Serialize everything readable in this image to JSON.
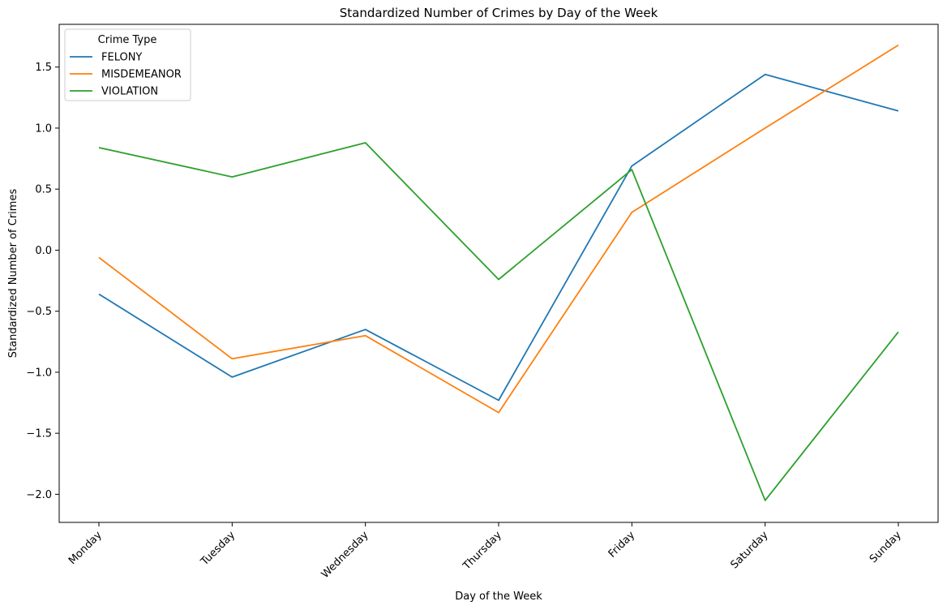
{
  "chart_data": {
    "type": "line",
    "title": "Standardized Number of Crimes by Day of the Week",
    "xlabel": "Day of the Week",
    "ylabel": "Standardized Number of Crimes",
    "categories": [
      "Monday",
      "Tuesday",
      "Wednesday",
      "Thursday",
      "Friday",
      "Saturday",
      "Sunday"
    ],
    "ylim": [
      -2.23,
      1.85
    ],
    "yticks": [
      -2.0,
      -1.5,
      -1.0,
      -0.5,
      0.0,
      0.5,
      1.0,
      1.5
    ],
    "ytick_labels": [
      "−2.0",
      "−1.5",
      "−1.0",
      "−0.5",
      "0.0",
      "0.5",
      "1.0",
      "1.5"
    ],
    "grid": false,
    "legend": {
      "title": "Crime Type",
      "placement": "top-left"
    },
    "series": [
      {
        "name": "FELONY",
        "color": "#1f77b4",
        "values": [
          -0.36,
          -1.04,
          -0.65,
          -1.23,
          0.69,
          1.44,
          1.14
        ]
      },
      {
        "name": "MISDEMEANOR",
        "color": "#ff7f0e",
        "values": [
          -0.06,
          -0.89,
          -0.7,
          -1.33,
          0.31,
          1.0,
          1.68
        ]
      },
      {
        "name": "VIOLATION",
        "color": "#2ca02c",
        "values": [
          0.84,
          0.6,
          0.88,
          -0.24,
          0.66,
          -2.05,
          -0.67
        ]
      }
    ]
  }
}
